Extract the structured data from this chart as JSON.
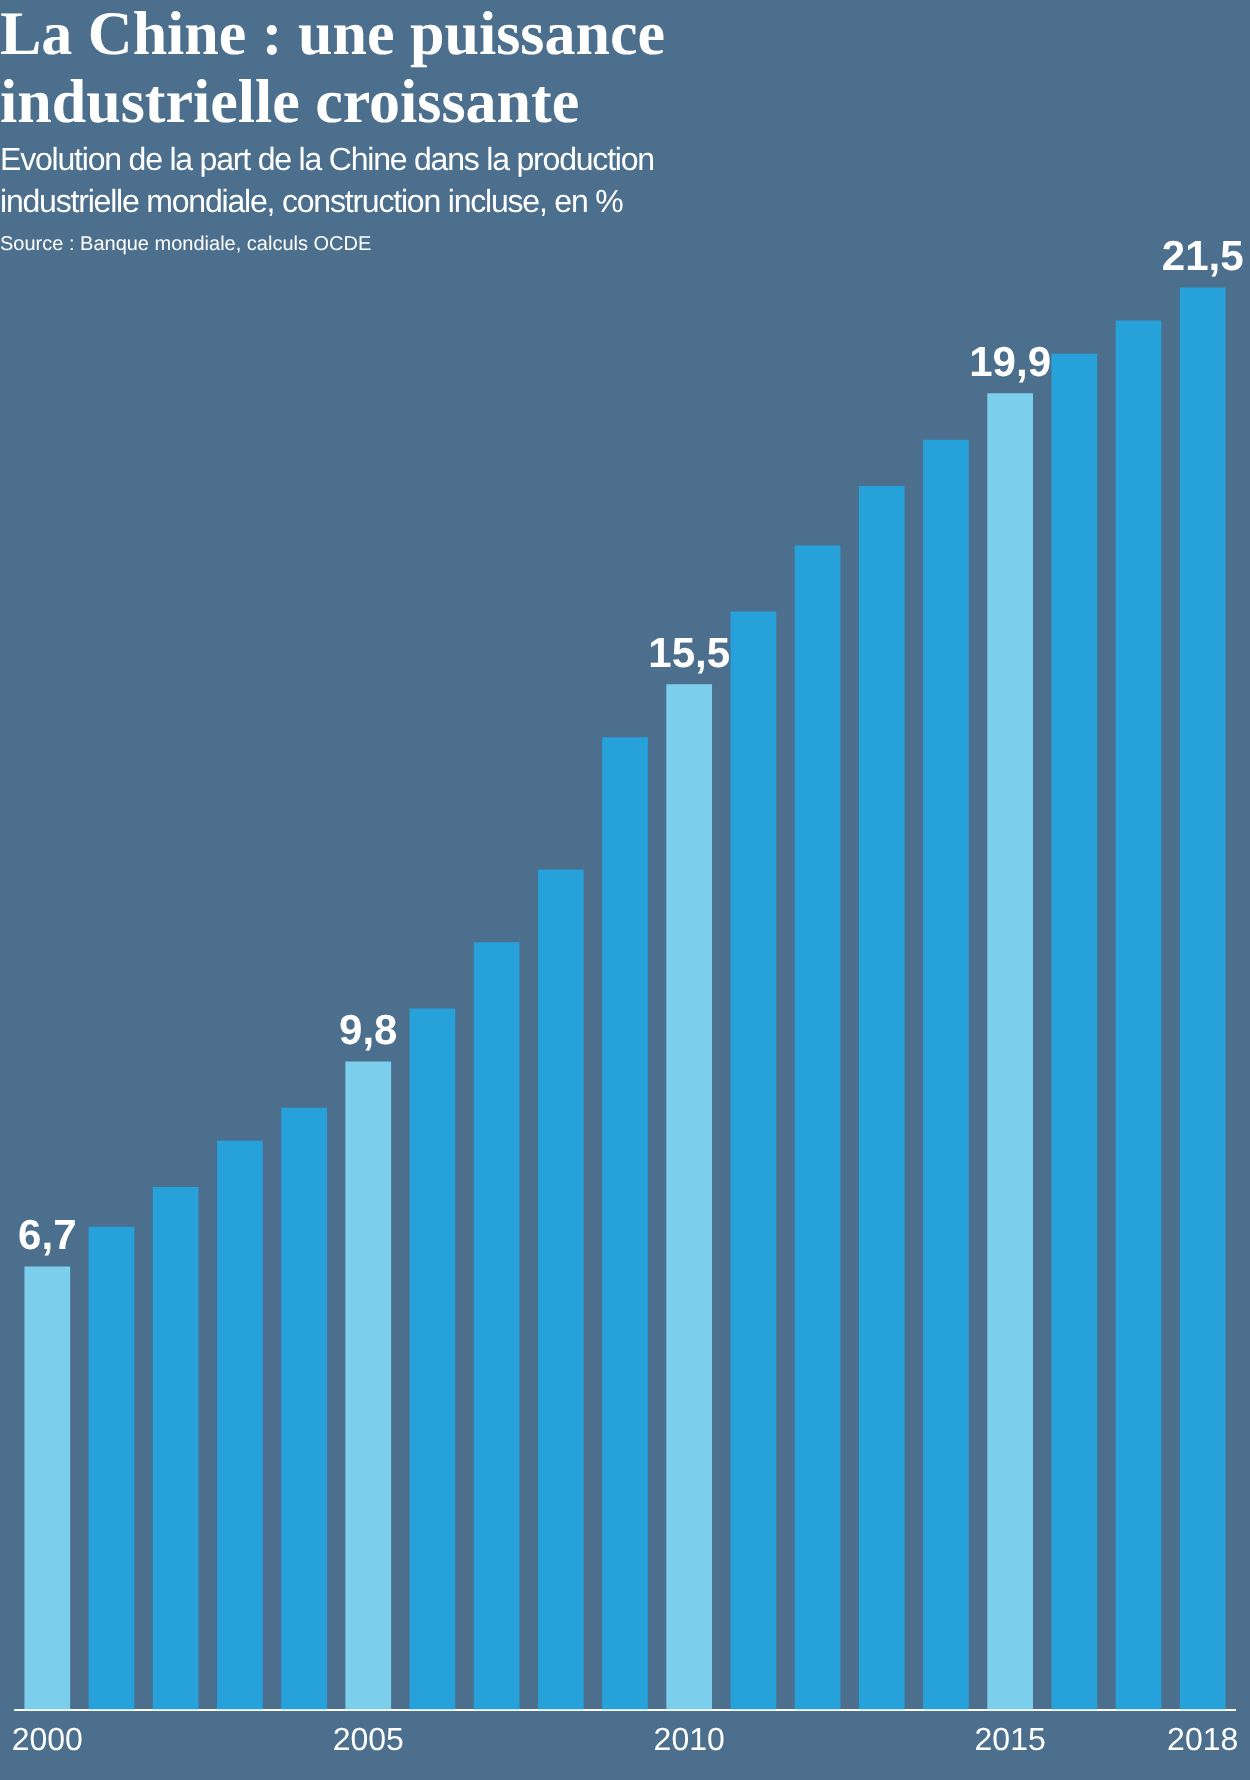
{
  "chart_data": {
    "type": "bar",
    "title": "La Chine : une puissance industrielle croissante",
    "subtitle": "Evolution de la part de la Chine dans la production industrielle mondiale, construction incluse, en %",
    "annotations": [
      "Source : Banque mondiale, calculs OCDE"
    ],
    "categories": [
      "2000",
      null,
      null,
      null,
      null,
      "2005",
      null,
      null,
      null,
      null,
      "2010",
      null,
      null,
      null,
      null,
      "2015",
      null,
      null,
      "2018"
    ],
    "values": [
      6.7,
      7.3,
      7.9,
      8.6,
      9.1,
      9.8,
      10.6,
      11.6,
      12.7,
      14.7,
      15.5,
      16.6,
      17.6,
      18.5,
      19.2,
      19.9,
      20.5,
      21.0,
      21.5
    ],
    "colors": [
      "#7ccfec",
      "#26a1da",
      "#26a1da",
      "#26a1da",
      "#26a1da",
      "#7ccfec",
      "#26a1da",
      "#26a1da",
      "#26a1da",
      "#26a1da",
      "#7ccfec",
      "#26a1da",
      "#26a1da",
      "#26a1da",
      "#26a1da",
      "#7ccfec",
      "#26a1da",
      "#26a1da",
      "#26a1da"
    ],
    "value_labels": [
      "6,7",
      null,
      null,
      null,
      null,
      "9,8",
      null,
      null,
      null,
      null,
      "15,5",
      null,
      null,
      null,
      null,
      "19,9",
      null,
      null,
      "21,5"
    ],
    "tick_labels": "x",
    "grid": false,
    "legend": false
  }
}
